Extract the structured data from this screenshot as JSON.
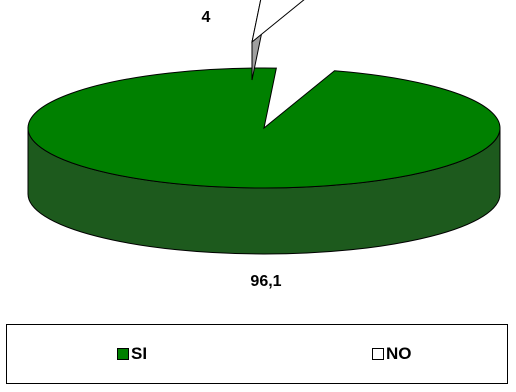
{
  "chart_data": {
    "type": "pie",
    "style": "3d-exploded",
    "categories": [
      "SI",
      "NO"
    ],
    "values": [
      96.1,
      4
    ],
    "data_labels": [
      "96,1",
      "4"
    ],
    "colors": {
      "SI": "#008000",
      "SI_side": "#1d5a1d",
      "NO": "#ffffff",
      "NO_side": "#a0a0a0"
    },
    "exploded_slice": "NO",
    "legend": {
      "placement": "bottom",
      "entries": [
        "SI",
        "NO"
      ]
    },
    "title": ""
  }
}
